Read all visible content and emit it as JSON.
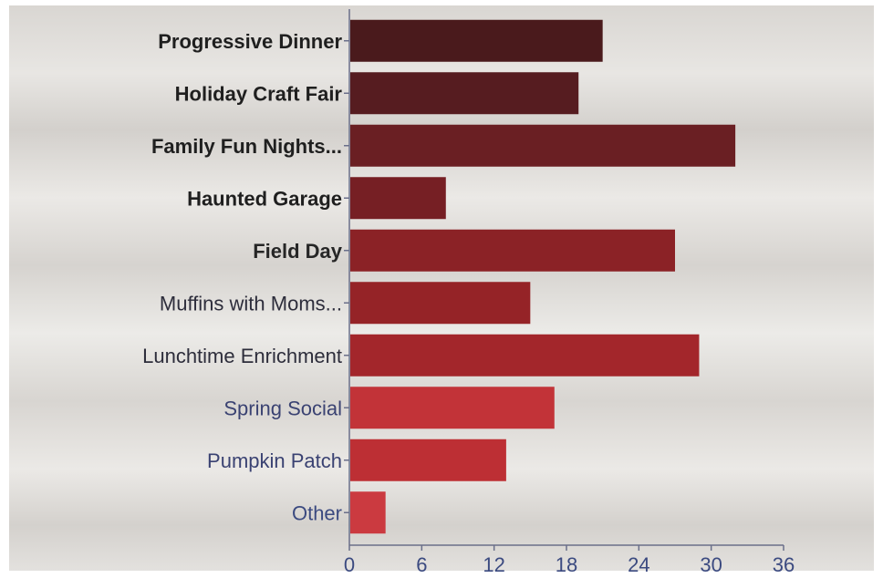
{
  "chart_data": {
    "type": "bar",
    "orientation": "horizontal",
    "categories": [
      "Progressive Dinner",
      "Holiday Craft Fair",
      "Family Fun Nights...",
      "Haunted Garage",
      "Field Day",
      "Muffins with Moms...",
      "Lunchtime Enrichment",
      "Spring Social",
      "Pumpkin Patch",
      "Other"
    ],
    "values": [
      21,
      19,
      32,
      8,
      27,
      15,
      29,
      17,
      13,
      3
    ],
    "xlim": [
      0,
      36
    ],
    "xticks": [
      "0",
      "6",
      "12",
      "18",
      "24",
      "30",
      "36"
    ],
    "title": "",
    "xlabel": "",
    "ylabel": "",
    "grid": false,
    "colors": {
      "bars": [
        "#4a1a1c",
        "#561c20",
        "#6a1f23",
        "#761f24",
        "#8b2226",
        "#952327",
        "#a3262b",
        "#c23338",
        "#bd2f34",
        "#cb3a40"
      ],
      "labels": [
        "#1f1f1f",
        "#1f1f1f",
        "#1f1f1f",
        "#1f1f1f",
        "#262626",
        "#2d2d3b",
        "#2d2d3b",
        "#3a4272",
        "#3a4272",
        "#3b4a80"
      ],
      "ticks": "#3b4a80",
      "axis": "#6a6f8a"
    }
  }
}
